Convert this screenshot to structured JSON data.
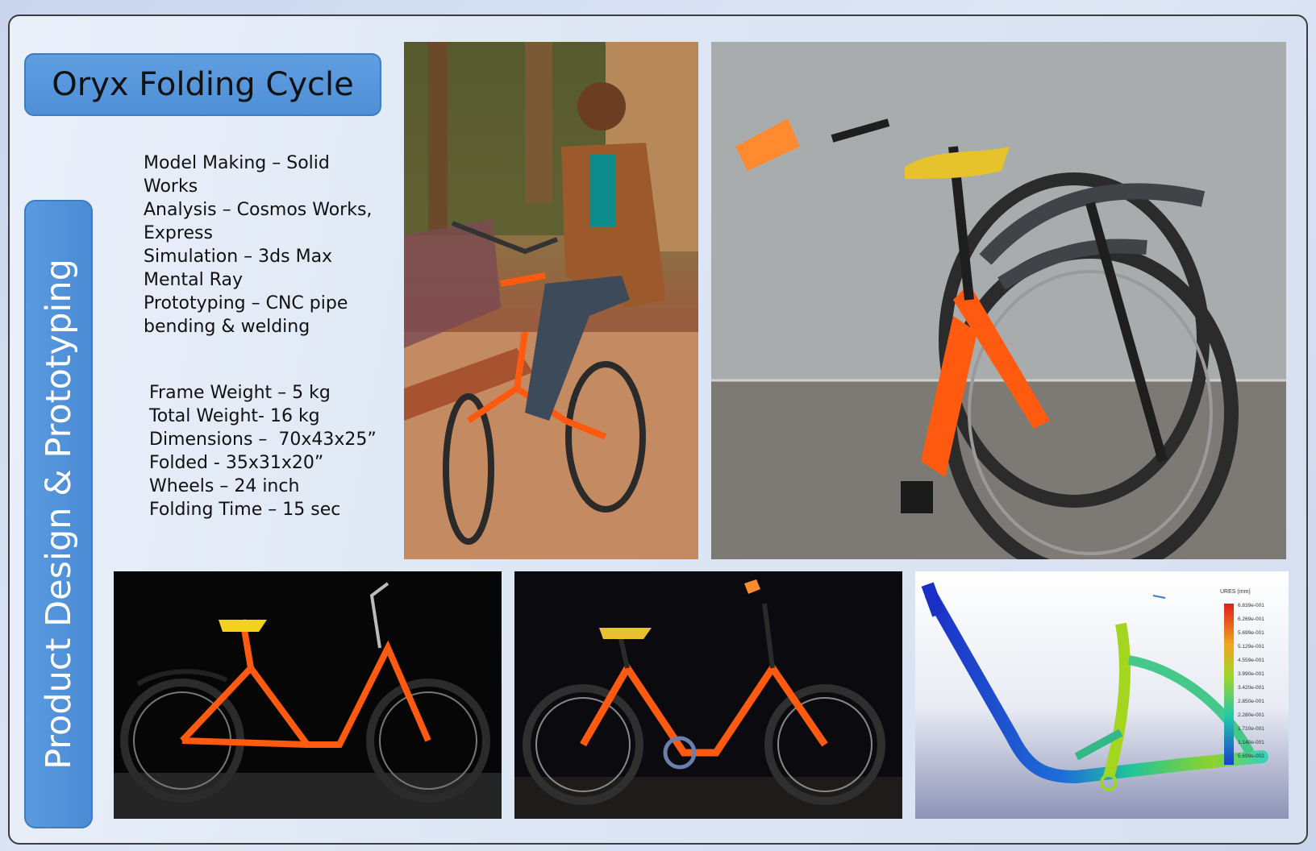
{
  "title": "Oryx Folding Cycle",
  "side_label": "Product Design & Prototyping",
  "process_lines": [
    "Model Making – Solid",
    "Works",
    "Analysis – Cosmos Works,",
    "Express",
    "Simulation – 3ds Max",
    "Mental Ray",
    "Prototyping – CNC pipe",
    "bending & welding"
  ],
  "spec_lines": [
    "Frame Weight – 5 kg",
    "Total Weight- 16 kg",
    "Dimensions –  70x43x25”",
    "Folded - 35x31x20”",
    "Wheels – 24 inch",
    "Folding Time – 15 sec"
  ],
  "fea_legend": {
    "title": "URES (mm)",
    "values": [
      "6.839e-001",
      "6.269e-001",
      "5.699e-001",
      "5.129e-001",
      "4.559e-001",
      "3.990e-001",
      "3.420e-001",
      "2.850e-001",
      "2.280e-001",
      "1.710e-001",
      "1.140e-001",
      "5.699e-002"
    ]
  },
  "colors": {
    "accent": "#4f8fd6",
    "frame_orange": "#ff5a10"
  }
}
